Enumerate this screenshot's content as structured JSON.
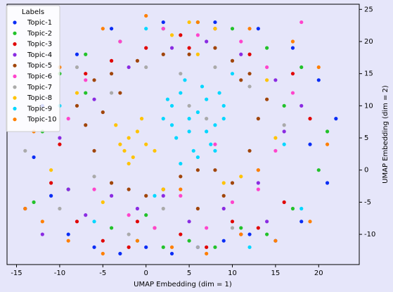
{
  "chart_data": {
    "type": "scatter",
    "xlabel": "UMAP Embedding (dim = 1)",
    "ylabel": "UMAP Embedding (dim = 2)",
    "legend_title": "Labels",
    "legend": "upper left",
    "yaxis_side": "right",
    "xlim": [
      -16.1,
      24.7
    ],
    "ylim": [
      -14.7,
      25.8
    ],
    "xticks": [
      -15,
      -10,
      -5,
      0,
      5,
      10,
      15,
      20
    ],
    "yticks": [
      -10,
      -5,
      0,
      5,
      10,
      15,
      20,
      25
    ],
    "series": [
      {
        "name": "Topic-1",
        "color": "#0a2df5",
        "x": [
          -13,
          -11,
          -9,
          -6,
          -3,
          0,
          3,
          6,
          9,
          12,
          15,
          18,
          21,
          22,
          20,
          17,
          13,
          8,
          2,
          -4,
          -8,
          -12,
          -14,
          19
        ],
        "y": [
          2,
          -4,
          -10,
          -12,
          -13,
          -12,
          -13,
          -12,
          -11,
          -10,
          -11,
          -8,
          -2,
          8,
          14,
          19,
          22,
          23,
          23,
          22,
          18,
          10,
          -6,
          4
        ]
      },
      {
        "name": "Topic-2",
        "color": "#22c22a",
        "x": [
          -12,
          -9,
          -7,
          -4,
          -1,
          2,
          5,
          8,
          11,
          14,
          17,
          20,
          21,
          18,
          14,
          10,
          6,
          2,
          -3,
          -7,
          -10,
          -13,
          16,
          0
        ],
        "y": [
          6,
          -3,
          12,
          -9,
          -11,
          -12,
          -11,
          -12,
          -9,
          -10,
          -6,
          0,
          6,
          16,
          19,
          22,
          23,
          22,
          20,
          18,
          15,
          -5,
          10,
          -7
        ]
      },
      {
        "name": "Topic-3",
        "color": "#e00000",
        "x": [
          -11,
          -8,
          -5,
          -2,
          1,
          4,
          7,
          10,
          13,
          16,
          19,
          17,
          12,
          8,
          4,
          0,
          -4,
          -7,
          -10,
          11,
          5,
          -1
        ],
        "y": [
          -2,
          -8,
          -11,
          -12,
          -9,
          -10,
          -12,
          -8,
          -9,
          -5,
          8,
          15,
          18,
          22,
          21,
          19,
          17,
          15,
          4,
          -10,
          19,
          -8
        ]
      },
      {
        "name": "Topic-4",
        "color": "#8a2be2",
        "x": [
          -10,
          -7,
          -4,
          -1,
          2,
          5,
          9,
          13,
          16,
          18,
          15,
          11,
          7,
          3,
          -2,
          -6,
          -9,
          -12,
          14
        ],
        "y": [
          5,
          -7,
          -4,
          -6,
          -4,
          -8,
          -6,
          -2,
          6,
          10,
          14,
          18,
          20,
          19,
          16,
          11,
          -3,
          -10,
          -8
        ]
      },
      {
        "name": "Topic-5",
        "color": "#a0450a",
        "x": [
          -8,
          -6,
          -4,
          -2,
          0,
          2,
          4,
          6,
          8,
          10,
          12,
          13,
          14,
          12,
          10,
          8,
          5,
          2,
          -1,
          -4,
          -6,
          -7,
          -5,
          -3,
          6,
          9,
          11
        ],
        "y": [
          10,
          3,
          -2,
          -3,
          -4,
          -3,
          -1,
          0,
          0,
          -2,
          3,
          8,
          11,
          15,
          17,
          19,
          18,
          18,
          17,
          15,
          14,
          7,
          9,
          12,
          -6,
          -4,
          14
        ]
      },
      {
        "name": "Topic-6",
        "color": "#ff44cc",
        "x": [
          -9,
          -6,
          -2,
          1,
          4,
          7,
          10,
          13,
          15,
          17,
          14,
          11,
          6,
          2,
          -3,
          -7,
          8,
          18
        ],
        "y": [
          8,
          -3,
          -7,
          -9,
          -4,
          -9,
          -5,
          -3,
          3,
          12,
          16,
          20,
          21,
          22,
          20,
          14,
          4,
          23
        ]
      },
      {
        "name": "Topic-7",
        "color": "#aaaaaa",
        "x": [
          -14,
          -10,
          -6,
          -2,
          2,
          6,
          10,
          13,
          16,
          12,
          8,
          4,
          0,
          -4,
          -8,
          5,
          7
        ],
        "y": [
          3,
          -6,
          -1,
          -10,
          -6,
          -12,
          -9,
          0,
          7,
          13,
          16,
          15,
          16,
          12,
          16,
          10,
          8
        ]
      },
      {
        "name": "Topic-8",
        "color": "#ffc300",
        "x": [
          -3,
          -2,
          -1,
          -2.5,
          -1.5,
          -3.5,
          0,
          1,
          -0.5,
          -2,
          3,
          5,
          8,
          11,
          15,
          -8,
          -11,
          14,
          9,
          -5,
          2,
          6
        ],
        "y": [
          4,
          5,
          6,
          3,
          2,
          7,
          4,
          3,
          8,
          1,
          21,
          23,
          22,
          -1,
          5,
          12,
          0,
          14,
          -2,
          -5,
          -3,
          18
        ]
      },
      {
        "name": "Topic-9",
        "color": "#00d7ff",
        "x": [
          2,
          3,
          4,
          5,
          6,
          7,
          8,
          9,
          3.5,
          5.5,
          7.5,
          4.5,
          6.5,
          8.5,
          2.5,
          3,
          5,
          7,
          9,
          6,
          4,
          8,
          -6,
          -10,
          16,
          18,
          12,
          0,
          1,
          10
        ],
        "y": [
          8,
          10,
          12,
          6,
          9,
          11,
          7,
          10,
          5,
          3,
          4,
          14,
          13,
          12,
          11,
          7,
          8,
          6,
          8,
          2,
          1,
          3,
          -8,
          10,
          4,
          -6,
          -12,
          22,
          -4,
          15
        ]
      },
      {
        "name": "Topic-10",
        "color": "#ff7f00",
        "x": [
          -14,
          -12,
          -9,
          -5,
          -1,
          3,
          7,
          11,
          15,
          19,
          21,
          20,
          17,
          12,
          6,
          0,
          -5,
          -10,
          -13,
          13,
          4
        ],
        "y": [
          -6,
          -8,
          -11,
          -13,
          -11,
          -12,
          -13,
          -10,
          -11,
          -8,
          4,
          16,
          20,
          22,
          23,
          24,
          22,
          16,
          6,
          0,
          -3
        ]
      }
    ]
  }
}
